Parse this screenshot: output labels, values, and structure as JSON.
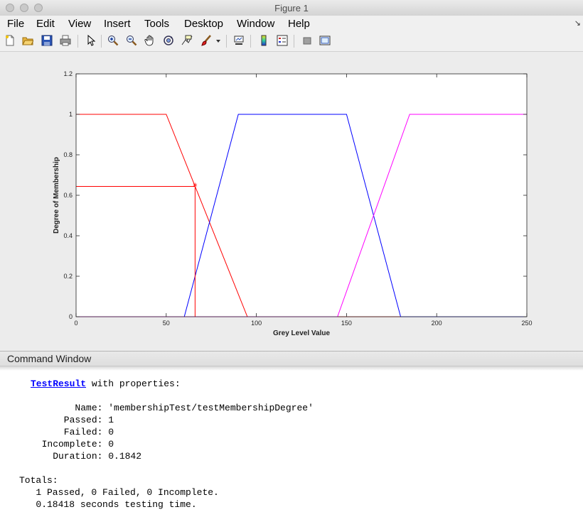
{
  "window": {
    "title": "Figure 1"
  },
  "menu": [
    "File",
    "Edit",
    "View",
    "Insert",
    "Tools",
    "Desktop",
    "Window",
    "Help"
  ],
  "toolbar": {
    "icons": [
      "new-figure-icon",
      "open-file-icon",
      "save-icon",
      "print-icon",
      "pointer-icon",
      "zoom-in-icon",
      "zoom-out-icon",
      "pan-icon",
      "rotate-3d-icon",
      "data-cursor-icon",
      "brush-icon",
      "brush-dropdown-icon",
      "link-plot-icon",
      "colorbar-icon",
      "legend-icon",
      "hide-plot-tools-icon",
      "show-plot-tools-icon"
    ]
  },
  "chart_data": {
    "type": "line",
    "xlabel": "Grey Level Value",
    "ylabel": "Degree of Membership",
    "xlim": [
      0,
      250
    ],
    "ylim": [
      0,
      1.2
    ],
    "xticks": [
      "0",
      "50",
      "100",
      "150",
      "200",
      "250"
    ],
    "yticks": [
      "0",
      "0.2",
      "0.4",
      "0.6",
      "0.8",
      "1",
      "1.2"
    ],
    "grid": false,
    "series": [
      {
        "color": "#ff0000",
        "x": [
          0,
          50,
          95,
          250
        ],
        "y": [
          1,
          1,
          0,
          0
        ]
      },
      {
        "color": "#0000ff",
        "x": [
          0,
          60,
          90,
          150,
          180,
          250
        ],
        "y": [
          0,
          0,
          1,
          1,
          0,
          0
        ]
      },
      {
        "color": "#ff00ff",
        "x": [
          0,
          145,
          185,
          250
        ],
        "y": [
          0,
          0,
          1,
          1
        ]
      }
    ],
    "marker": {
      "x": 66,
      "y": 0.644,
      "color": "#ff0000",
      "symbol": "*"
    }
  },
  "command_window": {
    "title": "Command Window",
    "result_link": "TestResult",
    "result_suffix": " with properties:",
    "props": [
      "        Name: 'membershipTest/testMembershipDegree'",
      "      Passed: 1",
      "      Failed: 0",
      "  Incomplete: 0",
      "    Duration: 0.1842"
    ],
    "totals_header": "Totals:",
    "totals": [
      "   1 Passed, 0 Failed, 0 Incomplete.",
      "   0.18418 seconds testing time."
    ]
  }
}
